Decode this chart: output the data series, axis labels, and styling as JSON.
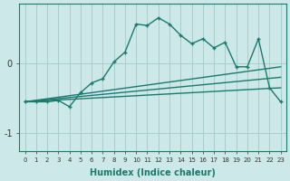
{
  "xlabel": "Humidex (Indice chaleur)",
  "ylabel": "",
  "bg_color": "#cce8e8",
  "grid_color": "#aacccc",
  "line_color": "#1a7a6e",
  "xlim": [
    -0.5,
    23.5
  ],
  "ylim": [
    -1.25,
    0.85
  ],
  "yticks": [
    0,
    -1
  ],
  "xticks": [
    0,
    1,
    2,
    3,
    4,
    5,
    6,
    7,
    8,
    9,
    10,
    11,
    12,
    13,
    14,
    15,
    16,
    17,
    18,
    19,
    20,
    21,
    22,
    23
  ],
  "jagged_x": [
    0,
    1,
    2,
    3,
    4,
    5,
    6,
    7,
    8,
    9,
    10,
    11,
    12,
    13,
    14,
    15,
    16,
    17,
    18,
    19,
    20,
    21,
    22,
    23
  ],
  "jagged_y": [
    -0.55,
    -0.55,
    -0.55,
    -0.53,
    -0.62,
    -0.42,
    -0.28,
    -0.22,
    0.02,
    0.16,
    0.56,
    0.54,
    0.65,
    0.56,
    0.4,
    0.28,
    0.35,
    0.22,
    0.3,
    -0.05,
    -0.05,
    0.35,
    -0.35,
    -0.55
  ],
  "line1_x": [
    0,
    23
  ],
  "line1_y": [
    -0.55,
    -0.05
  ],
  "line2_x": [
    0,
    23
  ],
  "line2_y": [
    -0.55,
    -0.2
  ],
  "line3_x": [
    0,
    23
  ],
  "line3_y": [
    -0.55,
    -0.35
  ],
  "marker_size": 3.5,
  "linewidth": 1.0
}
